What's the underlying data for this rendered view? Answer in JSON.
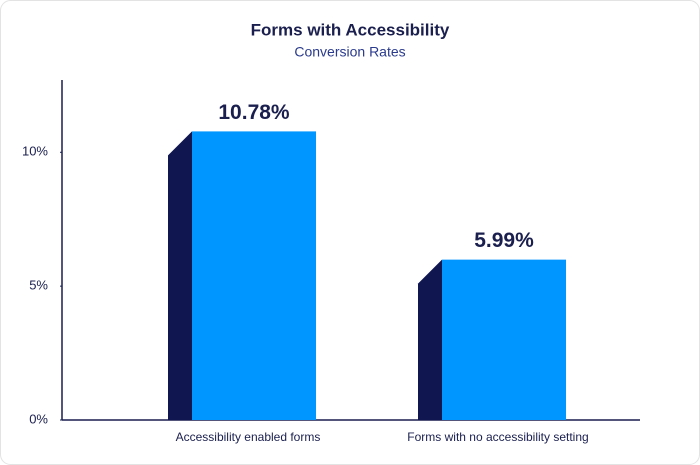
{
  "chart_data": {
    "type": "bar",
    "title": "Forms with Accessibility",
    "subtitle": "Conversion Rates",
    "categories": [
      "Accessibility enabled forms",
      "Forms with no accessibility setting"
    ],
    "values": [
      10.78,
      5.99
    ],
    "value_labels": [
      "10.78%",
      "5.99%"
    ],
    "color": "#0096ff",
    "side_color": "#0f1650",
    "ylim": [
      0,
      12.7
    ],
    "yticks": [
      {
        "value": 0,
        "label": "0%"
      },
      {
        "value": 5,
        "label": "5%"
      },
      {
        "value": 10,
        "label": "10%"
      }
    ],
    "grid": false
  }
}
